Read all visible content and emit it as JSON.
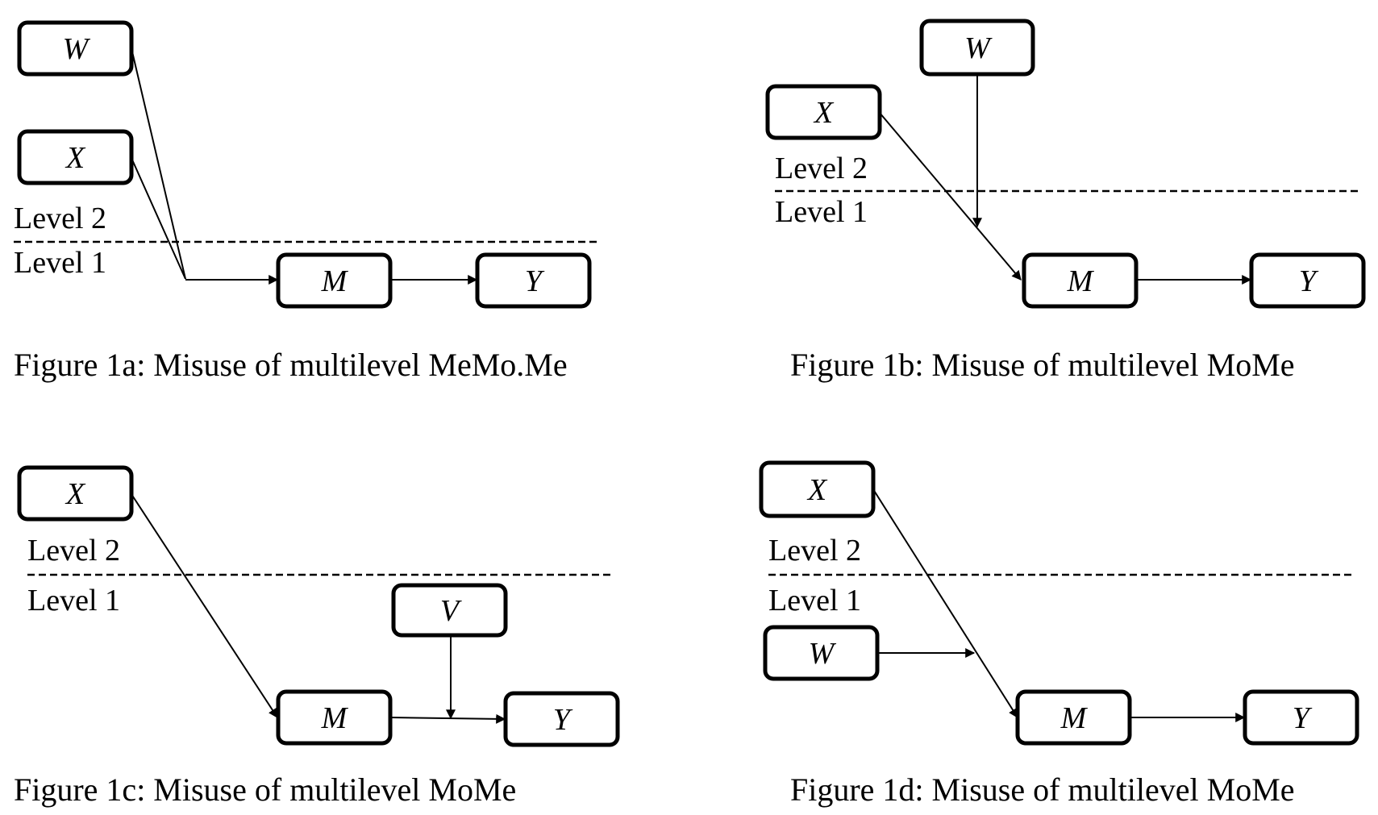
{
  "colors": {
    "background": "#ffffff",
    "ink": "#000000"
  },
  "panels": {
    "a": {
      "caption": "Figure 1a: Misuse of multilevel MeMo.Me",
      "level_upper": "Level 2",
      "level_lower": "Level 1",
      "nodes": {
        "w": "W",
        "x": "X",
        "m": "M",
        "y": "Y"
      }
    },
    "b": {
      "caption": "Figure 1b: Misuse of multilevel MoMe",
      "level_upper": "Level 2",
      "level_lower": "Level 1",
      "nodes": {
        "w": "W",
        "x": "X",
        "m": "M",
        "y": "Y"
      }
    },
    "c": {
      "caption": "Figure 1c: Misuse of multilevel MoMe",
      "level_upper": "Level 2",
      "level_lower": "Level 1",
      "nodes": {
        "x": "X",
        "v": "V",
        "m": "M",
        "y": "Y"
      }
    },
    "d": {
      "caption": "Figure 1d: Misuse of multilevel MoMe",
      "level_upper": "Level 2",
      "level_lower": "Level 1",
      "nodes": {
        "x": "X",
        "w": "W",
        "m": "M",
        "y": "Y"
      }
    }
  }
}
